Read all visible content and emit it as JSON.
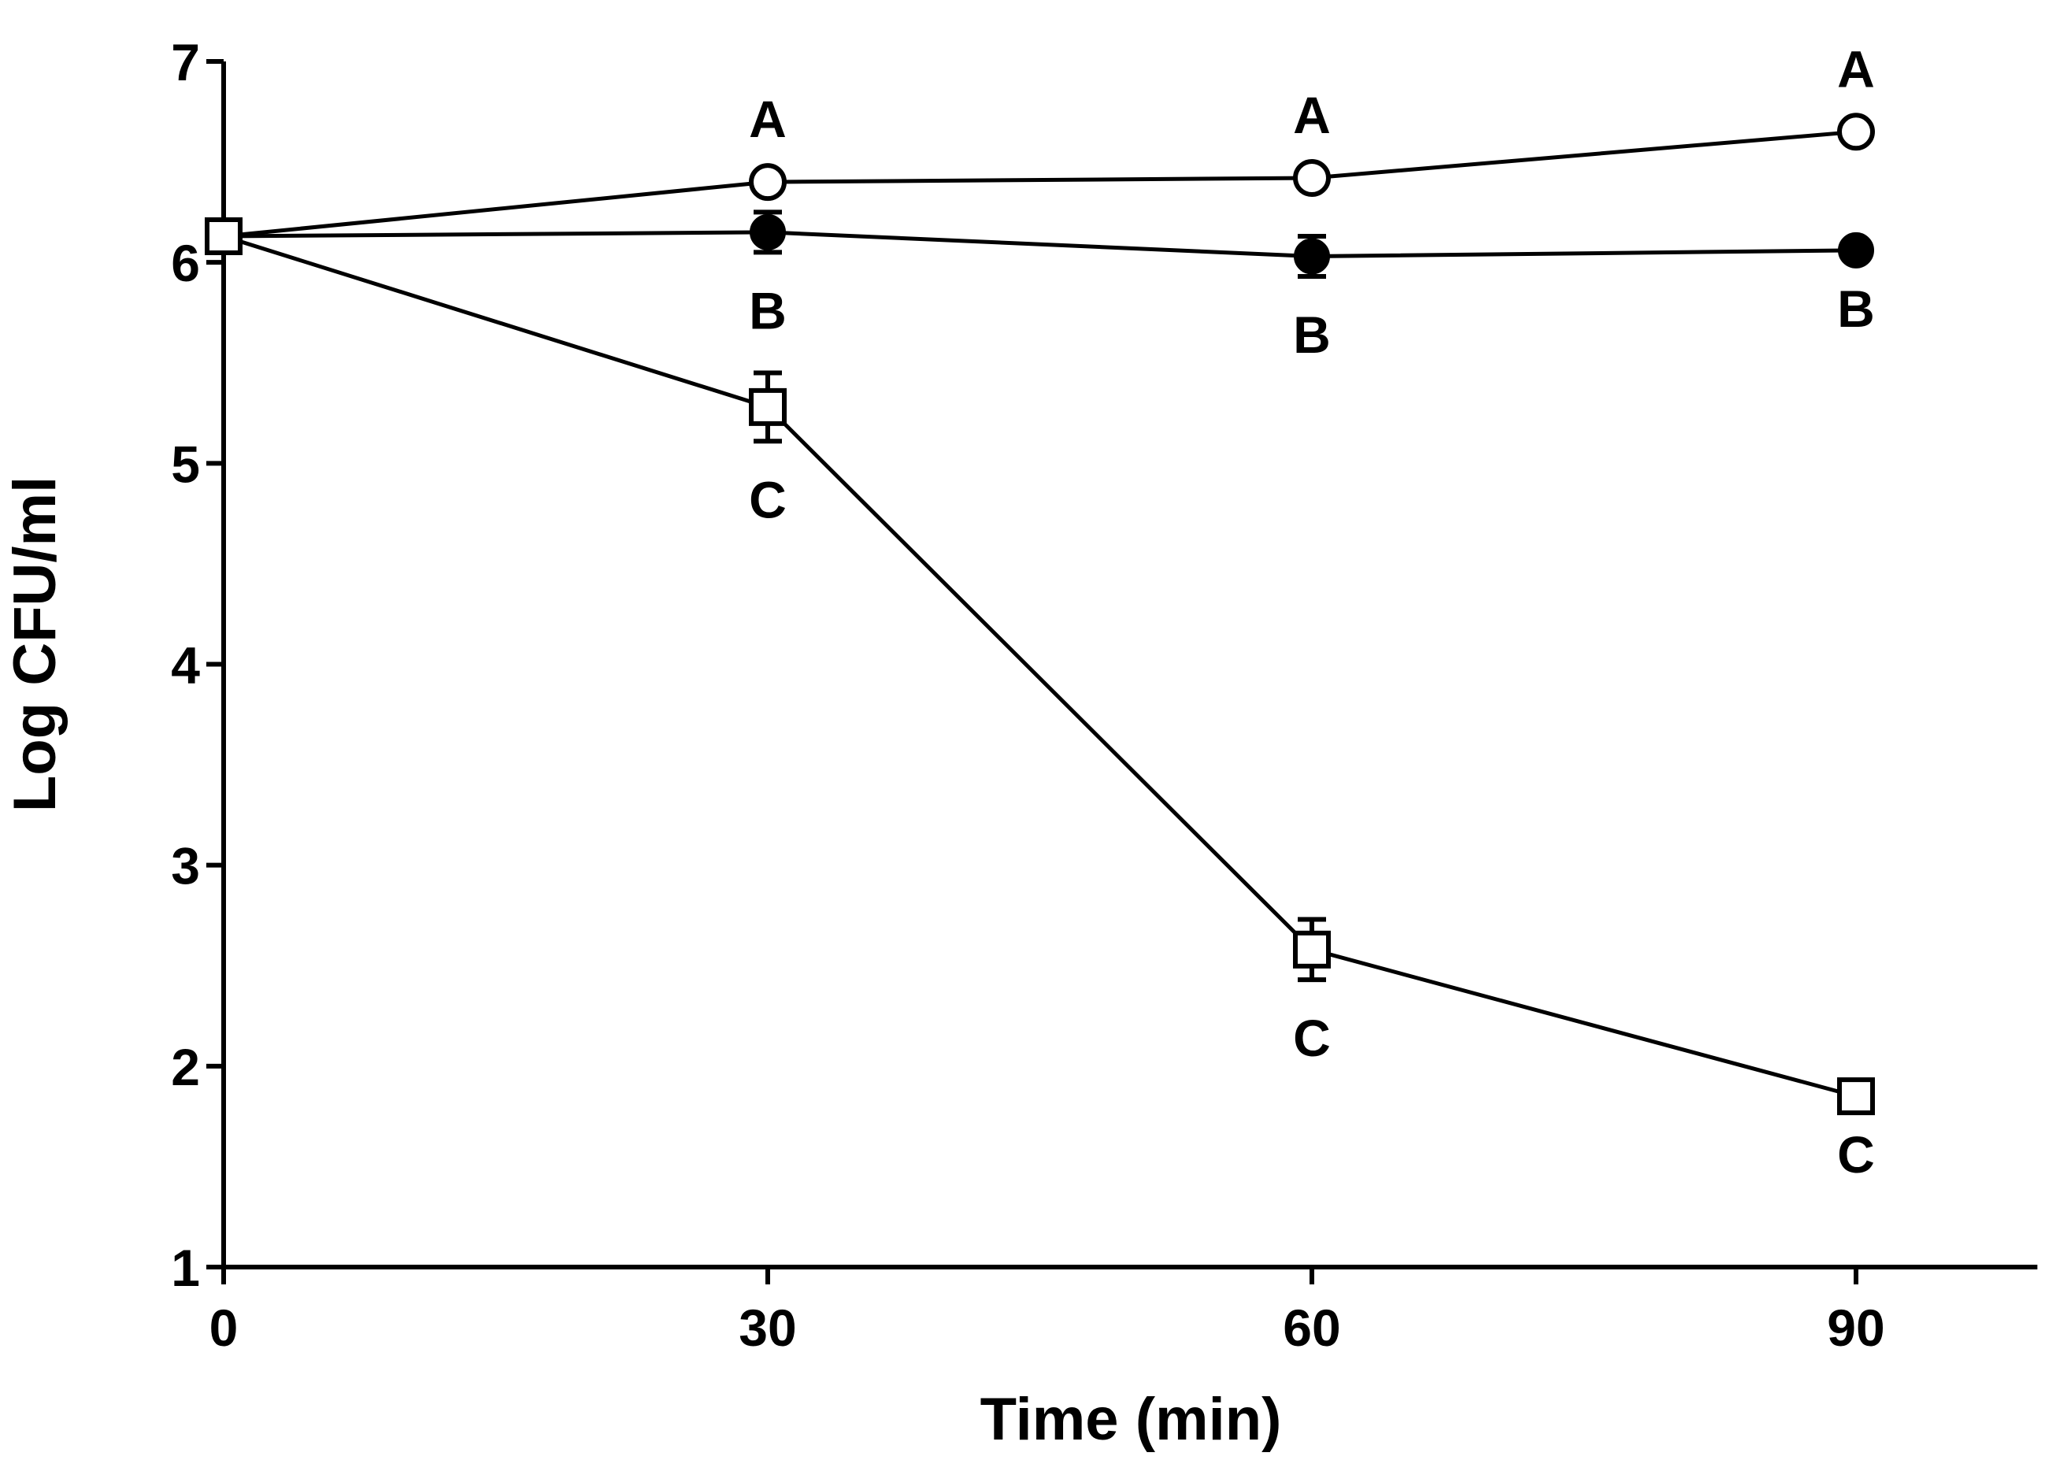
{
  "chart_data": {
    "type": "line",
    "title": "",
    "xlabel": "Time (min)",
    "ylabel": "Log CFU/ml",
    "xlim": [
      0,
      100
    ],
    "ylim": [
      1,
      7
    ],
    "xticks": [
      0,
      30,
      60,
      90
    ],
    "yticks": [
      1,
      2,
      3,
      4,
      5,
      6,
      7
    ],
    "x": [
      0,
      30,
      60,
      90
    ],
    "grid": false,
    "legend": "none",
    "series": [
      {
        "name": "open-circle",
        "marker": "circle-open",
        "values": [
          6.13,
          6.4,
          6.42,
          6.65
        ],
        "errors": [
          0.0,
          0.0,
          0.0,
          0.0
        ],
        "labels": [
          "",
          "A",
          "A",
          "A"
        ],
        "label_position": "above"
      },
      {
        "name": "filled-circle",
        "marker": "circle-filled",
        "values": [
          6.13,
          6.15,
          6.03,
          6.06
        ],
        "errors": [
          0.0,
          0.1,
          0.1,
          0.0
        ],
        "labels": [
          "",
          "B",
          "B",
          "B"
        ],
        "label_position": "below"
      },
      {
        "name": "open-square",
        "marker": "square-open",
        "values": [
          6.13,
          5.28,
          2.58,
          1.85
        ],
        "errors": [
          0.0,
          0.17,
          0.15,
          0.0
        ],
        "labels": [
          "",
          "C",
          "C",
          "C"
        ],
        "label_position": "below"
      }
    ]
  },
  "colors": {
    "ink": "#000000",
    "background": "#ffffff"
  }
}
